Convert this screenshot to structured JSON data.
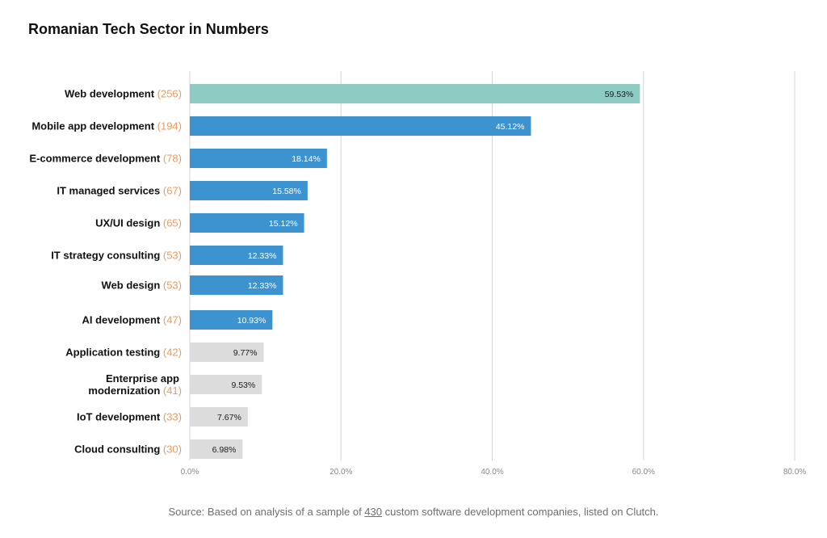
{
  "chart_data": {
    "type": "bar",
    "orientation": "horizontal",
    "title": "Romanian Tech Sector in Numbers",
    "xlim": [
      0,
      80
    ],
    "x_ticks": [
      "0.0%",
      "20.0%",
      "40.0%",
      "60.0%",
      "80.0%"
    ],
    "grid": true,
    "bars": [
      {
        "label": "Web development",
        "count": "(256)",
        "value": 59.53,
        "value_label": "59.53%",
        "color": "#8ecbc2"
      },
      {
        "label": "Mobile app development",
        "count": "(194)",
        "value": 45.12,
        "value_label": "45.12%",
        "color": "#3d92d0"
      },
      {
        "label": "E-commerce development",
        "count": "(78)",
        "value": 18.14,
        "value_label": "18.14%",
        "color": "#3d92d0"
      },
      {
        "label": "IT managed services",
        "count": "(67)",
        "value": 15.58,
        "value_label": "15.58%",
        "color": "#3d92d0"
      },
      {
        "label": "UX/UI design",
        "count": "(65)",
        "value": 15.12,
        "value_label": "15.12%",
        "color": "#3d92d0"
      },
      {
        "label": "IT strategy consulting",
        "count": "(53)",
        "value": 12.33,
        "value_label": "12.33%",
        "color": "#3d92d0"
      },
      {
        "label": "Web design",
        "count": "(53)",
        "value": 12.33,
        "value_label": "12.33%",
        "color": "#3d92d0"
      },
      {
        "label": "AI development",
        "count": "(47)",
        "value": 10.93,
        "value_label": "10.93%",
        "color": "#3d92d0"
      },
      {
        "label": "Application testing",
        "count": "(42)",
        "value": 9.77,
        "value_label": "9.77%",
        "color": "#dcdcdc"
      },
      {
        "label": "Enterprise app modernization",
        "count": "(41)",
        "value": 9.53,
        "value_label": "9.53%",
        "color": "#dcdcdc"
      },
      {
        "label": "IoT development",
        "count": "(33)",
        "value": 7.67,
        "value_label": "7.67%",
        "color": "#dcdcdc"
      },
      {
        "label": "Cloud consulting",
        "count": "(30)",
        "value": 6.98,
        "value_label": "6.98%",
        "color": "#dcdcdc"
      }
    ],
    "colors": {
      "count_label": "#ef9a5a",
      "gridline": "#d4d4d4",
      "category_text": "#111111",
      "tick_text": "#8a8a8a"
    }
  },
  "footer": {
    "prefix": "Source: Based on analysis of a sample of ",
    "sample_size": "430",
    "suffix": " custom software development companies, listed on Clutch."
  }
}
